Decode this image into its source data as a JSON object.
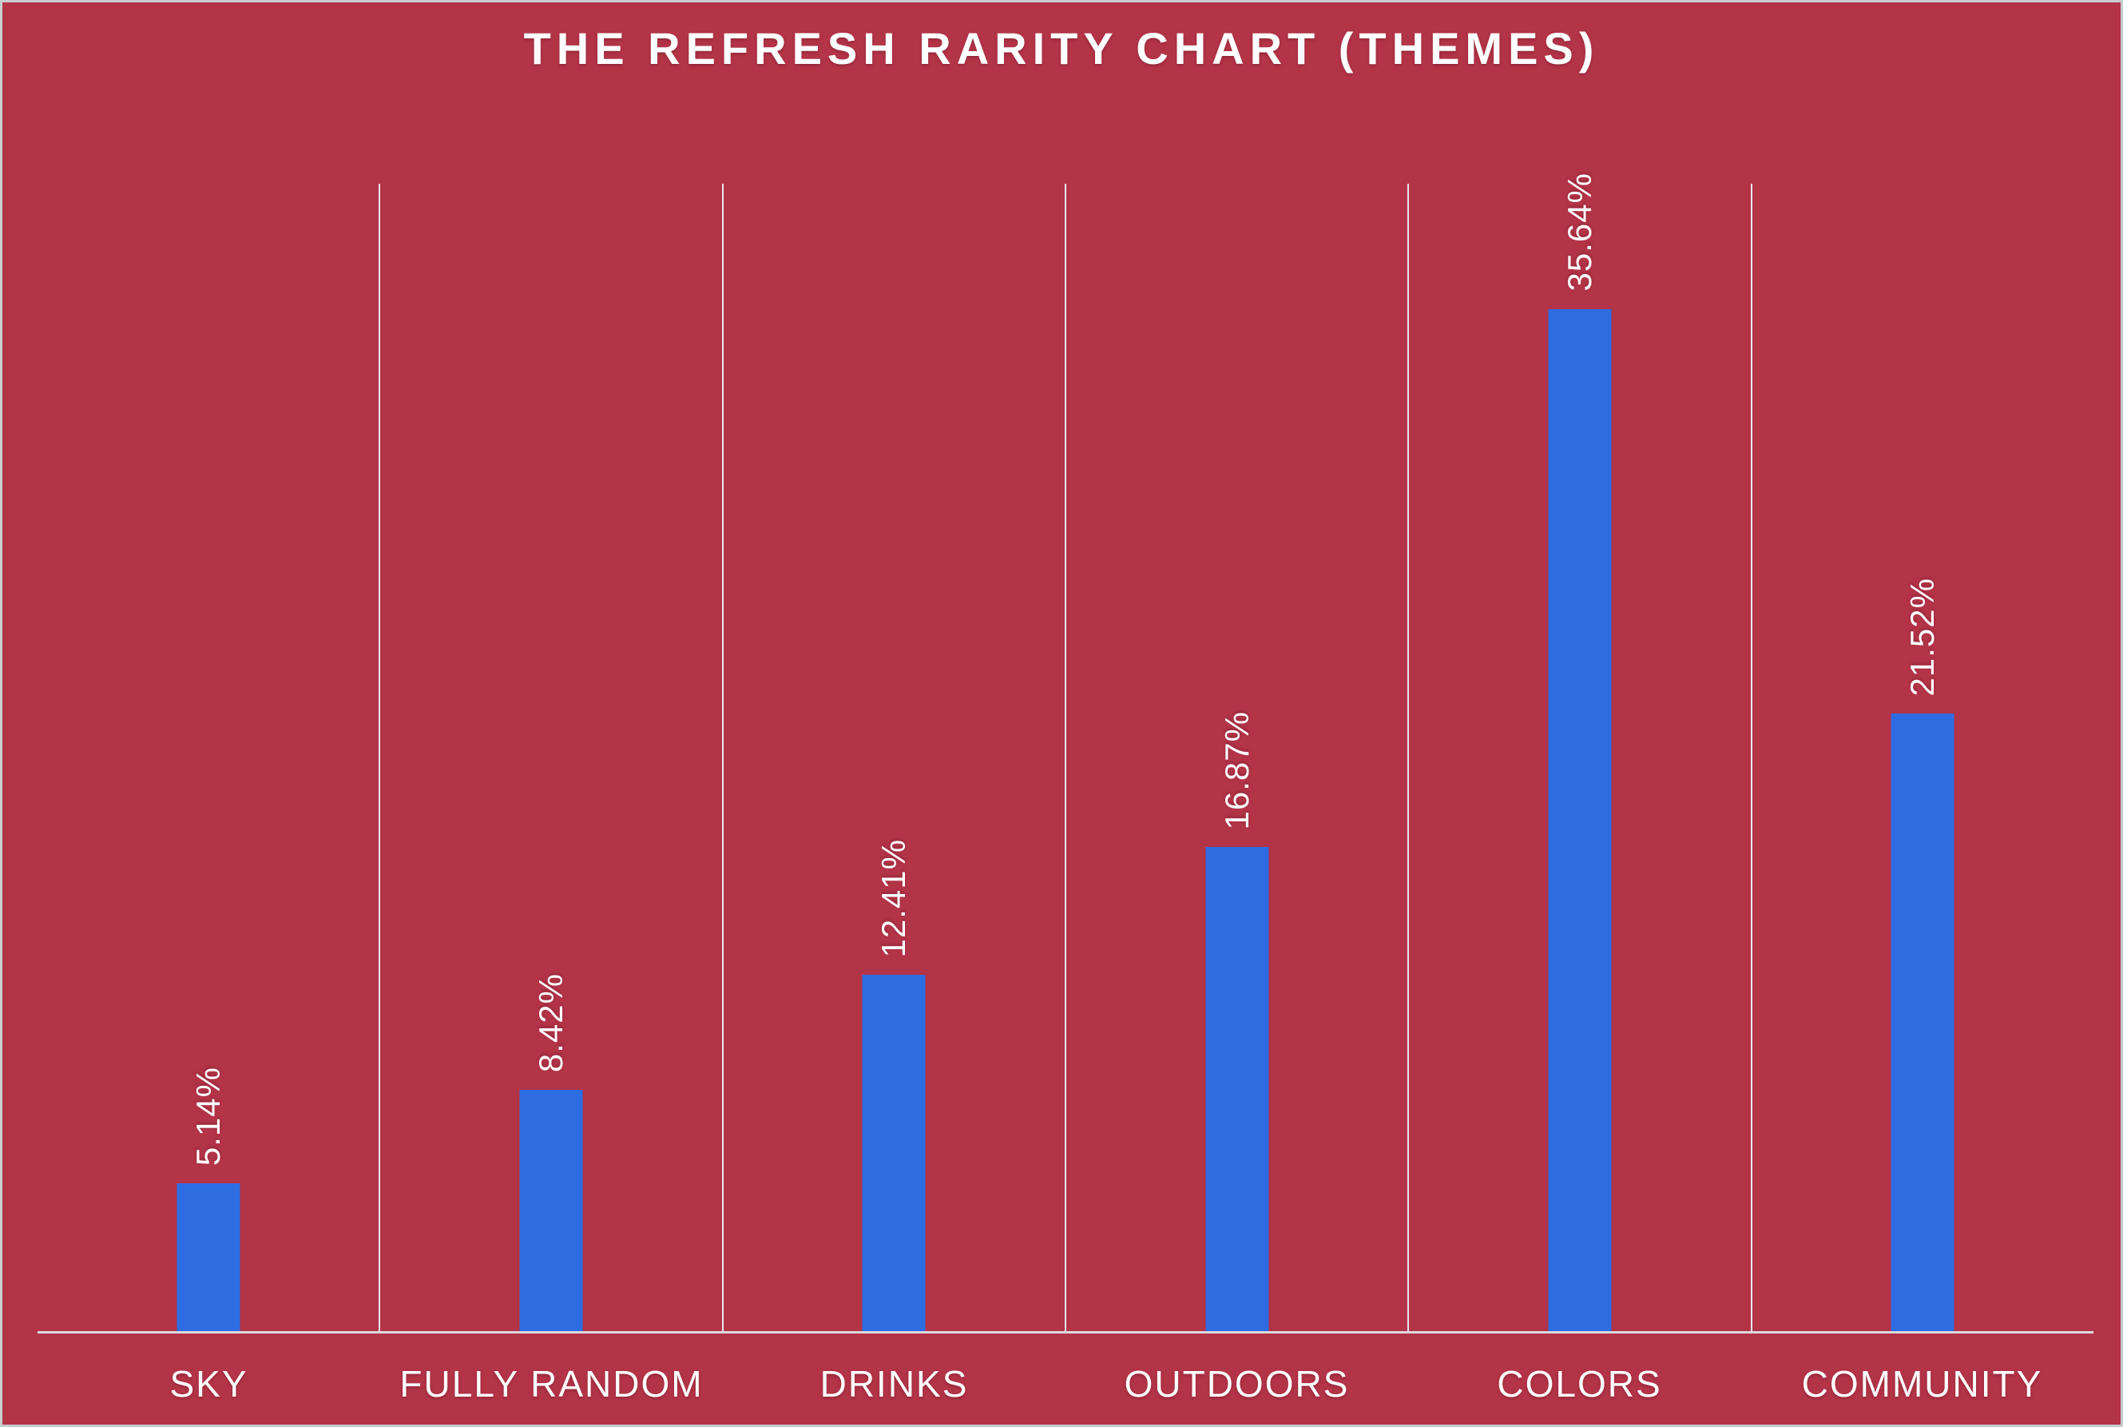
{
  "chart_data": {
    "type": "bar",
    "title": "THE REFRESH RARITY CHART (THEMES)",
    "categories": [
      "SKY",
      "FULLY RANDOM",
      "DRINKS",
      "OUTDOORS",
      "COLORS",
      "COMMUNITY"
    ],
    "values": [
      5.14,
      8.42,
      12.41,
      16.87,
      35.64,
      21.52
    ],
    "value_labels": [
      "5.14%",
      "8.42%",
      "12.41%",
      "16.87%",
      "35.64%",
      "21.52%"
    ],
    "xlabel": "",
    "ylabel": "",
    "ylim": [
      0,
      40
    ],
    "grid": "vertical-separators-only",
    "legend": "none",
    "value_label_rotation_deg": -90,
    "colors": {
      "background": "#b33347",
      "bar": "#2e6ce2",
      "gridline": "#e8e9ee",
      "axis_line": "#d9dadd",
      "text": "#ffffff",
      "frame_border": "#c9cdd2"
    }
  }
}
